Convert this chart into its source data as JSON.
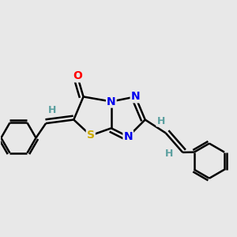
{
  "bg_color": "#e8e8e8",
  "atom_colors": {
    "C": "#000000",
    "N": "#0000ee",
    "O": "#ff0000",
    "S": "#ccaa00",
    "H": "#5ca0a0"
  },
  "bond_color": "#000000",
  "bond_width": 1.8,
  "font_size_atom": 10,
  "font_size_H": 9
}
